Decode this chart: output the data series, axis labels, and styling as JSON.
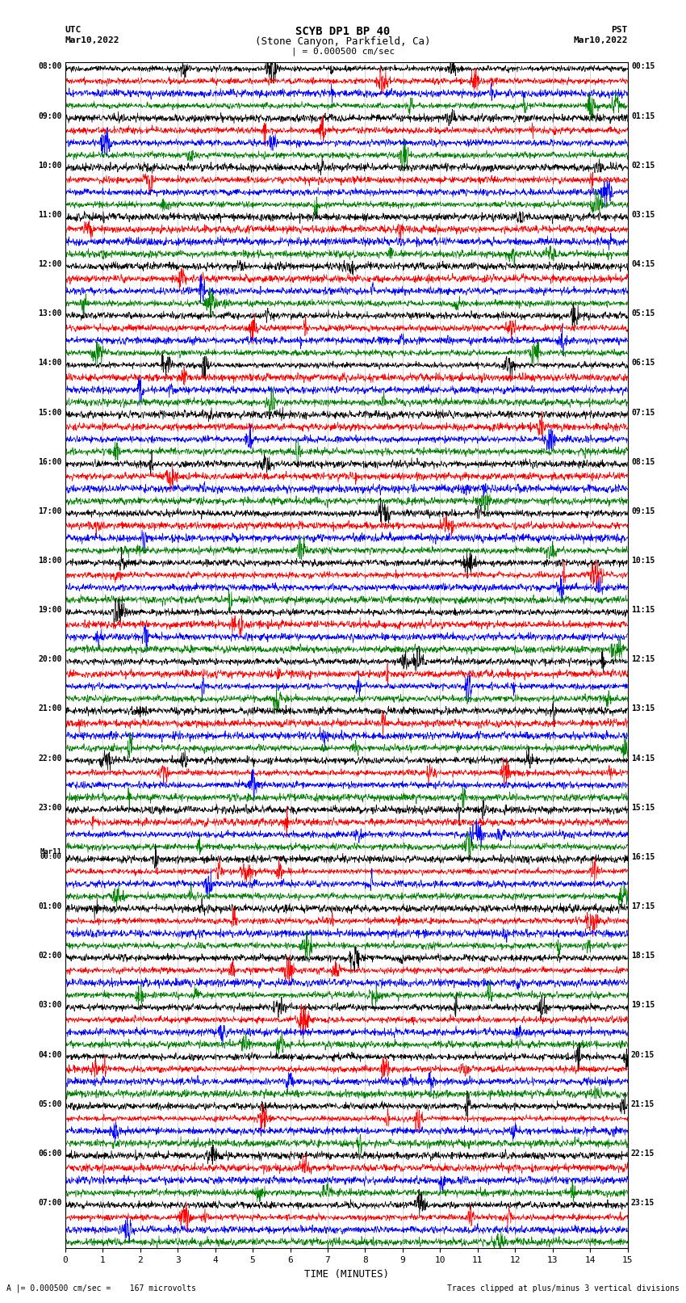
{
  "title_line1": "SCYB DP1 BP 40",
  "title_line2": "(Stone Canyon, Parkfield, Ca)",
  "scale_label": "| = 0.000500 cm/sec",
  "left_header_line1": "UTC",
  "left_header_line2": "Mar10,2022",
  "right_header_line1": "PST",
  "right_header_line2": "Mar10,2022",
  "bottom_label": "TIME (MINUTES)",
  "footer_left": "A |= 0.000500 cm/sec =    167 microvolts",
  "footer_right": "Traces clipped at plus/minus 3 vertical divisions",
  "xlabel_ticks": [
    0,
    1,
    2,
    3,
    4,
    5,
    6,
    7,
    8,
    9,
    10,
    11,
    12,
    13,
    14,
    15
  ],
  "left_times": [
    "08:00",
    "09:00",
    "10:00",
    "11:00",
    "12:00",
    "13:00",
    "14:00",
    "15:00",
    "16:00",
    "17:00",
    "18:00",
    "19:00",
    "20:00",
    "21:00",
    "22:00",
    "23:00",
    "Mar11\n00:00",
    "01:00",
    "02:00",
    "03:00",
    "04:00",
    "05:00",
    "06:00",
    "07:00"
  ],
  "right_times": [
    "00:15",
    "01:15",
    "02:15",
    "03:15",
    "04:15",
    "05:15",
    "06:15",
    "07:15",
    "08:15",
    "09:15",
    "10:15",
    "11:15",
    "12:15",
    "13:15",
    "14:15",
    "15:15",
    "16:15",
    "17:15",
    "18:15",
    "19:15",
    "20:15",
    "21:15",
    "22:15",
    "23:15"
  ],
  "colors": [
    "black",
    "red",
    "blue",
    "green"
  ],
  "n_hours": 24,
  "traces_per_hour": 4,
  "fig_width": 8.5,
  "fig_height": 16.13,
  "dpi": 100
}
